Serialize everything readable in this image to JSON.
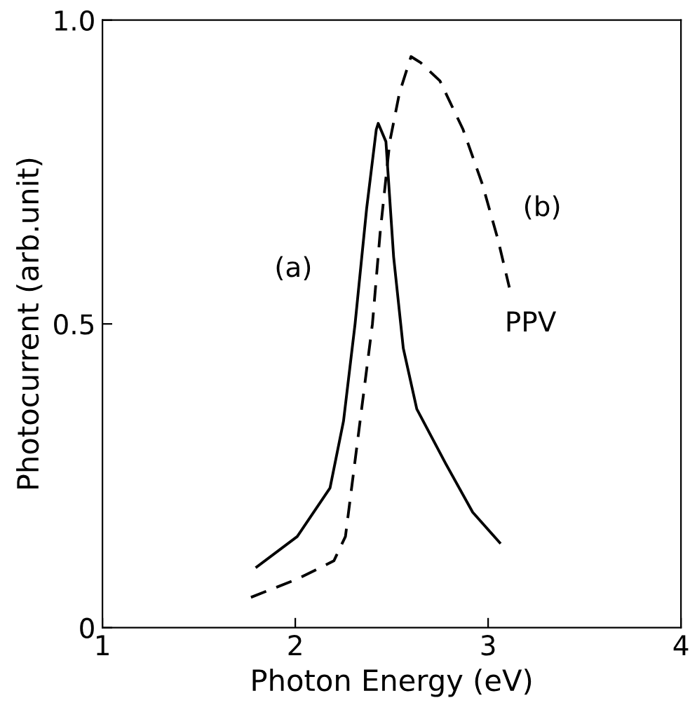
{
  "chart_data": {
    "type": "line",
    "xlabel": "Photon Energy (eV)",
    "ylabel": "Photocurrent (arb.unit)",
    "xlim": [
      1,
      4
    ],
    "ylim": [
      0,
      1
    ],
    "xticks": [
      1,
      2,
      3,
      4
    ],
    "yticks": [
      0,
      0.5,
      {
        "value": 1,
        "label": "1.0"
      }
    ],
    "grid": false,
    "legend": false,
    "marker": "none",
    "series": [
      {
        "name": "(a)",
        "color": "#000000",
        "line_style": "solid",
        "x": [
          1.8,
          2.01,
          2.18,
          2.25,
          2.31,
          2.37,
          2.42,
          2.43,
          2.47,
          2.51,
          2.56,
          2.63,
          2.78,
          2.92,
          3.06
        ],
        "values": [
          0.1,
          0.15,
          0.23,
          0.34,
          0.5,
          0.69,
          0.82,
          0.83,
          0.8,
          0.61,
          0.46,
          0.36,
          0.27,
          0.19,
          0.14
        ]
      },
      {
        "name": "(b)",
        "color": "#000000",
        "line_style": "dashed",
        "x": [
          1.77,
          2.01,
          2.2,
          2.26,
          2.32,
          2.4,
          2.44,
          2.49,
          2.54,
          2.6,
          2.65,
          2.75,
          2.87,
          2.97,
          3.05,
          3.11
        ],
        "values": [
          0.05,
          0.08,
          0.11,
          0.15,
          0.3,
          0.5,
          0.65,
          0.8,
          0.88,
          0.94,
          0.93,
          0.9,
          0.82,
          0.73,
          0.64,
          0.56
        ]
      }
    ],
    "annotations": [
      "PPV"
    ]
  }
}
